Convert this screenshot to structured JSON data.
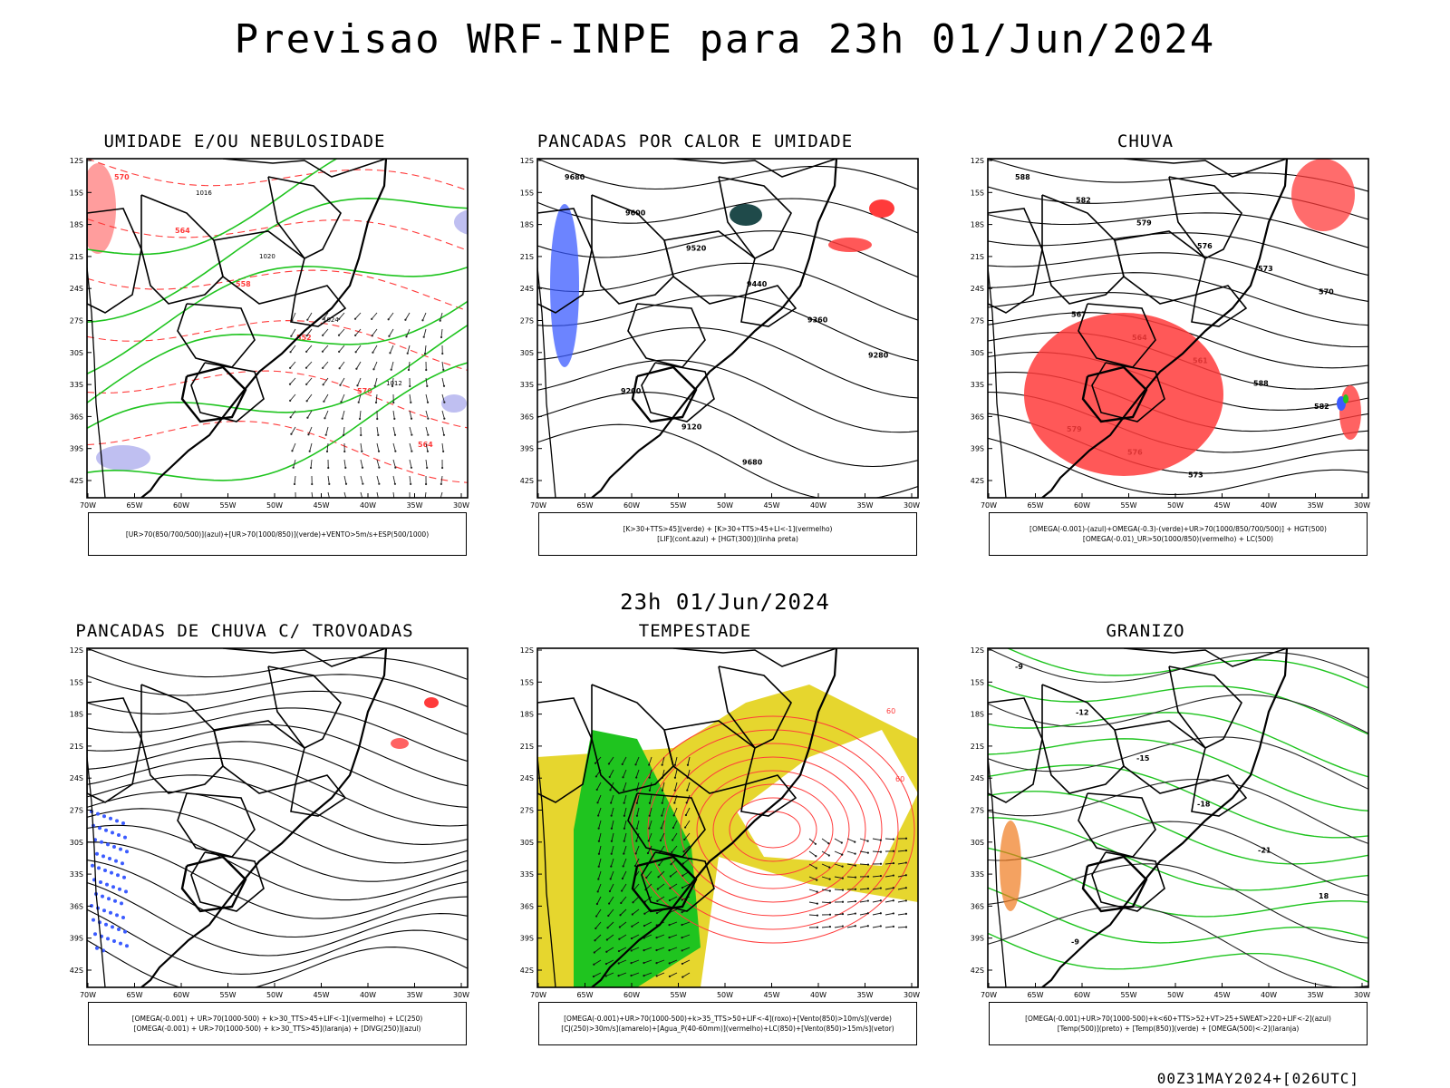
{
  "header": {
    "title": "Previsao WRF-INPE  para 23h 01/Jun/2024",
    "subtitle": "23h 01/Jun/2024",
    "run_id": "00Z31MAY2024+[026UTC]"
  },
  "axes": {
    "lat_labels": [
      "12S",
      "15S",
      "18S",
      "21S",
      "24S",
      "27S",
      "30S",
      "33S",
      "36S",
      "39S",
      "42S"
    ],
    "lon_labels": [
      "70W",
      "65W",
      "60W",
      "55W",
      "50W",
      "45W",
      "40W",
      "35W",
      "30W"
    ]
  },
  "colors": {
    "blue": "#3b5bff",
    "green": "#1fc41f",
    "red": "#ff3b3b",
    "yellow": "#e6d62e",
    "orange": "#f07a1e",
    "lavender": "#b8b8f0",
    "dark_teal": "#1f4a4a"
  },
  "panels": [
    {
      "title": "UMIDADE E/OU NEBULOSIDADE",
      "legend": [
        "[UR>70(850/700/500)](azul)+[UR>70(1000/850)](verde)+VENTO>5m/s+ESP(500/1000)"
      ],
      "contour_labels": [
        "1016",
        "1020",
        "1024",
        "1012",
        "570",
        "564",
        "558",
        "552"
      ]
    },
    {
      "title": "PANCADAS POR CALOR E UMIDADE",
      "legend": [
        "[K>30+TTS>45](verde) + [K>30+TTS>45+LI<-1](vermelho)",
        "[LIF](cont.azul) + [HGT(300)](linha preta)"
      ],
      "contour_labels": [
        "9680",
        "9600",
        "9520",
        "9440",
        "9360",
        "9280",
        "9200",
        "9120"
      ]
    },
    {
      "title": "CHUVA",
      "legend": [
        "[OMEGA(-0.001)-(azul)+OMEGA(-0.3)-(verde)+UR>70(1000/850/700/500)] + HGT(500)",
        "[OMEGA(-0.01)_UR>50(1000/850)(vermelho) + LC(500)"
      ],
      "contour_labels": [
        "588",
        "582",
        "579",
        "576",
        "573",
        "570",
        "567",
        "564",
        "561"
      ]
    },
    {
      "title": "PANCADAS DE CHUVA C/ TROVOADAS",
      "legend": [
        "[OMEGA(-0.001) + UR>70(1000-500) + k>30_TTS>45+LIF<-1](vermelho) + LC(250)",
        "[OMEGA(-0.001) + UR>70(1000-500) + k>30_TTS>45](laranja) + [DIVG(250)](azul)"
      ],
      "contour_labels": []
    },
    {
      "title": "TEMPESTADE",
      "legend": [
        "[OMEGA(-0.001)+UR>70(1000-500)+k>35_TTS>50+LIF<-4](roxo)+[Vento(850)>10m/s](verde)",
        "[CJ(250)>30m/s](amarelo)+[Agua_P(40-60mm)](vermelho)+LC(850)+[Vento(850)>15m/s](vetor)"
      ],
      "contour_labels": [
        "60",
        "60"
      ]
    },
    {
      "title": "GRANIZO",
      "legend": [
        "[OMEGA(-0.001)+UR>70(1000-500)+k<60+TTS>52+VT>25+SWEAT>220+LIF<-2](azul)",
        "[Temp(500)](preto) + [Temp(850)](verde) + [OMEGA(500)<-2](laranja)"
      ],
      "contour_labels": [
        "-9",
        "-12",
        "-15",
        "-18",
        "-21",
        "18"
      ]
    }
  ]
}
